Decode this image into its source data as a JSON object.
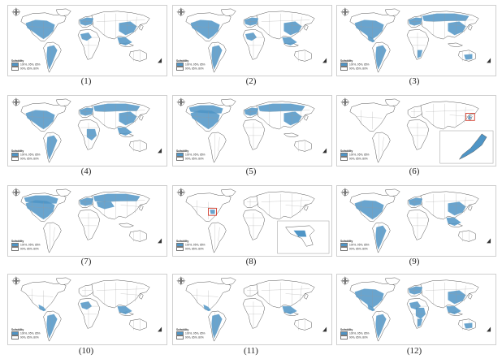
{
  "legend": {
    "title": "Suitability",
    "items": [
      {
        "label": "100%, 95%, 85%",
        "color": "#4f95c6"
      },
      {
        "label": "90%, 85%, 80%",
        "color": "#ffffff"
      }
    ]
  },
  "colors": {
    "suitable": "#4f95c6",
    "land": "#ffffff",
    "border": "#9a9a9a",
    "coast": "#555555",
    "highlight": "#d23a2a"
  },
  "maps": [
    {
      "caption": "(1)",
      "regions": [
        "north-america",
        "south-america",
        "africa-west",
        "europe",
        "east-asia",
        "se-asia"
      ]
    },
    {
      "caption": "(2)",
      "regions": [
        "north-america",
        "south-america",
        "africa-west",
        "europe",
        "east-asia",
        "se-asia"
      ]
    },
    {
      "caption": "(3)",
      "regions": [
        "north-america",
        "central-america",
        "south-america",
        "europe",
        "russia",
        "east-asia",
        "africa-south",
        "australia"
      ]
    },
    {
      "caption": "(4)",
      "regions": [
        "north-america",
        "south-america",
        "africa-central",
        "europe",
        "russia",
        "east-asia",
        "se-asia"
      ]
    },
    {
      "caption": "(5)",
      "regions": [
        "canada",
        "north-america",
        "europe",
        "russia",
        "east-asia"
      ]
    },
    {
      "caption": "(6)",
      "regions": [
        "japan"
      ],
      "inset": "japan"
    },
    {
      "caption": "(7)",
      "regions": [
        "canada",
        "north-america",
        "europe",
        "russia",
        "central-asia"
      ]
    },
    {
      "caption": "(8)",
      "regions": [
        "us-southeast"
      ],
      "inset": "florida"
    },
    {
      "caption": "(9)",
      "regions": [
        "north-america",
        "south-america",
        "europe",
        "east-asia",
        "se-asia"
      ]
    },
    {
      "caption": "(10)",
      "regions": [
        "central-america",
        "south-america",
        "africa-west",
        "se-asia"
      ]
    },
    {
      "caption": "(11)",
      "regions": [
        "central-america",
        "south-america",
        "se-asia"
      ]
    },
    {
      "caption": "(12)",
      "regions": [
        "north-america",
        "central-america",
        "south-america",
        "africa-west",
        "africa-central",
        "africa-south",
        "europe",
        "east-asia",
        "se-asia",
        "australia"
      ]
    }
  ]
}
